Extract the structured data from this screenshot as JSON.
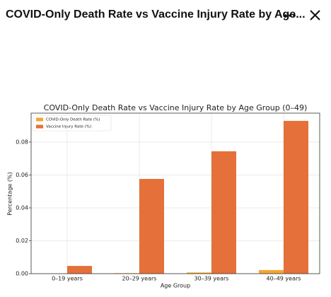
{
  "header": {
    "title": "COVID-Only Death Rate vs Vaccine Injury Rate by Age..."
  },
  "chart_data": {
    "type": "bar",
    "title": "COVID-Only Death Rate vs Vaccine Injury Rate by Age Group (0–49)",
    "x_label": "Age Group",
    "y_label": "Percentage (%)",
    "categories": [
      "0–19 years",
      "20–29 years",
      "30–39 years",
      "40–49 years"
    ],
    "series": [
      {
        "name": "COVID-Only Death Rate (%)",
        "color": "#f2a72f",
        "values": [
          2e-05,
          0.0003,
          0.0007,
          0.0022
        ]
      },
      {
        "name": "Vaccine Injury Rate (%)",
        "color": "#e5703a",
        "values": [
          0.0047,
          0.0576,
          0.0744,
          0.0929
        ]
      }
    ],
    "ylim": [
      0,
      0.0976
    ],
    "yticks": [
      {
        "value": 0,
        "label": "0.00"
      },
      {
        "value": 0.02,
        "label": "0.02"
      },
      {
        "value": 0.04,
        "label": "0.04"
      },
      {
        "value": 0.06,
        "label": "0.06"
      },
      {
        "value": 0.08,
        "label": "0.08"
      }
    ],
    "grid": true,
    "legend": "upper left"
  }
}
